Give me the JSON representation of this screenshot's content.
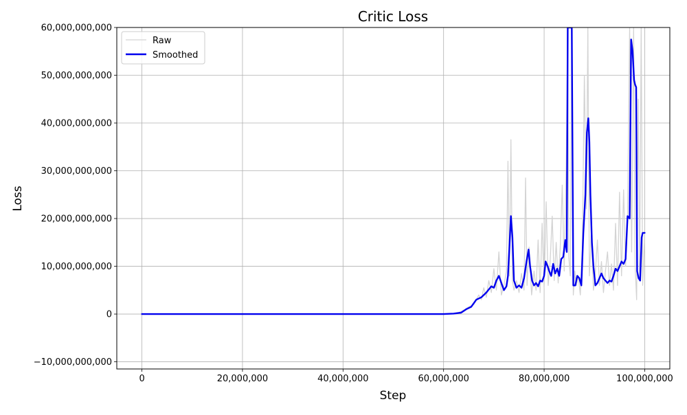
{
  "chart_data": {
    "type": "line",
    "title": "Critic Loss",
    "xlabel": "Step",
    "ylabel": "Loss",
    "xlim": [
      -5000000,
      105000000
    ],
    "ylim": [
      -11500000000,
      60000000000
    ],
    "x_ticks": [
      0,
      20000000,
      40000000,
      60000000,
      80000000,
      100000000
    ],
    "x_tick_labels": [
      "0",
      "20,000,000",
      "40,000,000",
      "60,000,000",
      "80,000,000",
      "100,000,000"
    ],
    "y_ticks": [
      -10000000000,
      0,
      10000000000,
      20000000000,
      30000000000,
      40000000000,
      50000000000,
      60000000000
    ],
    "y_tick_labels": [
      "−10,000,000,000",
      "0",
      "10,000,000,000",
      "20,000,000,000",
      "30,000,000,000",
      "40,000,000,000",
      "50,000,000,000",
      "60,000,000,000"
    ],
    "grid": true,
    "legend_position": "top-left",
    "series": [
      {
        "name": "Raw",
        "color": "#d3d3d3",
        "line_width": 1.3,
        "x": [
          0,
          10000000,
          20000000,
          30000000,
          40000000,
          50000000,
          60000000,
          62000000,
          63000000,
          64000000,
          65000000,
          66000000,
          67000000,
          67500000,
          68000000,
          68500000,
          69000000,
          69500000,
          70000000,
          70500000,
          71000000,
          71500000,
          72000000,
          72500000,
          72800000,
          73100000,
          73400000,
          73700000,
          74000000,
          74500000,
          75000000,
          75500000,
          76000000,
          76300000,
          76600000,
          77000000,
          77500000,
          78000000,
          78400000,
          78800000,
          79200000,
          79600000,
          80000000,
          80400000,
          80800000,
          81200000,
          81600000,
          82000000,
          82400000,
          82800000,
          83200000,
          83600000,
          84000000,
          84400000,
          84700000,
          84900000,
          85200000,
          85500000,
          85800000,
          86100000,
          86400000,
          86800000,
          87200000,
          87600000,
          88000000,
          88400000,
          88700000,
          89000000,
          89400000,
          89800000,
          90200000,
          90600000,
          91000000,
          91400000,
          91800000,
          92200000,
          92600000,
          93000000,
          93400000,
          93800000,
          94200000,
          94600000,
          95000000,
          95400000,
          95800000,
          96200000,
          96600000,
          97000000,
          97400000,
          97800000,
          98100000,
          98400000,
          98700000,
          99000000,
          99300000,
          99600000,
          100000000
        ],
        "y": [
          0,
          0,
          0,
          0,
          0,
          0,
          0,
          100000000,
          300000000,
          800000000,
          1500000000,
          2000000000,
          4000000000,
          3000000000,
          5500000000,
          3500000000,
          7000000000,
          4500000000,
          9500000000,
          5000000000,
          13000000000,
          4000000000,
          6000000000,
          9000000000,
          32000000000,
          8000000000,
          36500000000,
          7000000000,
          5000000000,
          7000000000,
          4500000000,
          8500000000,
          5000000000,
          28500000000,
          6000000000,
          14000000000,
          4000000000,
          9000000000,
          5000000000,
          15500000000,
          4500000000,
          19000000000,
          5500000000,
          23500000000,
          6000000000,
          11000000000,
          20500000000,
          7000000000,
          15000000000,
          6500000000,
          14000000000,
          27000000000,
          9000000000,
          31000000000,
          60000000000,
          12000000000,
          8000000000,
          60000000000,
          4000000000,
          9000000000,
          6000000000,
          8000000000,
          4000000000,
          14000000000,
          50000000000,
          22000000000,
          60000000000,
          8000000000,
          17000000000,
          5000000000,
          9000000000,
          15500000000,
          6000000000,
          11000000000,
          4500000000,
          9000000000,
          13000000000,
          6000000000,
          10500000000,
          5000000000,
          19000000000,
          6000000000,
          25500000000,
          8000000000,
          26000000000,
          10000000000,
          20000000000,
          60000000000,
          13000000000,
          60000000000,
          10000000000,
          3000000000,
          45000000000,
          7000000000,
          60000000000,
          6000000000,
          17000000000
        ]
      },
      {
        "name": "Smoothed",
        "color": "#0000ee",
        "line_width": 2.4,
        "x": [
          0,
          10000000,
          20000000,
          30000000,
          40000000,
          50000000,
          55000000,
          60000000,
          62000000,
          63500000,
          64500000,
          65500000,
          66500000,
          67500000,
          68500000,
          69500000,
          70000000,
          70500000,
          71000000,
          71500000,
          72000000,
          72500000,
          72800000,
          73100000,
          73400000,
          73700000,
          74000000,
          74500000,
          75000000,
          75500000,
          76000000,
          76500000,
          76900000,
          77200000,
          77600000,
          78000000,
          78400000,
          78800000,
          79200000,
          79600000,
          80000000,
          80300000,
          80700000,
          81000000,
          81400000,
          81800000,
          82200000,
          82600000,
          83000000,
          83400000,
          83800000,
          84200000,
          84500000,
          84700000,
          84900000,
          85300000,
          85500000,
          85800000,
          86200000,
          86600000,
          87000000,
          87400000,
          87800000,
          88200000,
          88500000,
          88800000,
          89000000,
          89200000,
          89500000,
          89800000,
          90200000,
          90600000,
          91000000,
          91400000,
          91800000,
          92200000,
          92600000,
          93000000,
          93400000,
          93800000,
          94200000,
          94600000,
          95000000,
          95400000,
          95800000,
          96200000,
          96600000,
          97000000,
          97300000,
          97600000,
          97900000,
          98100000,
          98300000,
          98500000,
          98800000,
          99100000,
          99400000,
          99600000,
          99800000,
          100000000
        ],
        "y": [
          0,
          0,
          0,
          0,
          0,
          0,
          0,
          0,
          100000000,
          300000000,
          1000000000,
          1500000000,
          3000000000,
          3500000000,
          4500000000,
          5800000000,
          5500000000,
          7000000000,
          8000000000,
          6500000000,
          5000000000,
          5800000000,
          8000000000,
          14000000000,
          20500000000,
          16000000000,
          7000000000,
          5500000000,
          6000000000,
          5500000000,
          7500000000,
          11000000000,
          13500000000,
          10000000000,
          7000000000,
          6000000000,
          6500000000,
          5800000000,
          7000000000,
          6800000000,
          8000000000,
          11000000000,
          10000000000,
          9000000000,
          8000000000,
          10500000000,
          8500000000,
          9500000000,
          8000000000,
          11500000000,
          12000000000,
          15500000000,
          13000000000,
          60000000000,
          60000000000,
          60000000000,
          60000000000,
          6000000000,
          6000000000,
          8000000000,
          7500000000,
          6000000000,
          17000000000,
          25000000000,
          38000000000,
          41000000000,
          36000000000,
          25000000000,
          15000000000,
          10000000000,
          6000000000,
          6500000000,
          7500000000,
          8500000000,
          7500000000,
          7000000000,
          6500000000,
          7000000000,
          6800000000,
          8000000000,
          9500000000,
          9000000000,
          10000000000,
          11000000000,
          10500000000,
          11500000000,
          20500000000,
          20000000000,
          57500000000,
          55000000000,
          49000000000,
          48000000000,
          47500000000,
          9000000000,
          7500000000,
          7000000000,
          16000000000,
          17000000000,
          17000000000,
          17000000000
        ]
      }
    ]
  }
}
